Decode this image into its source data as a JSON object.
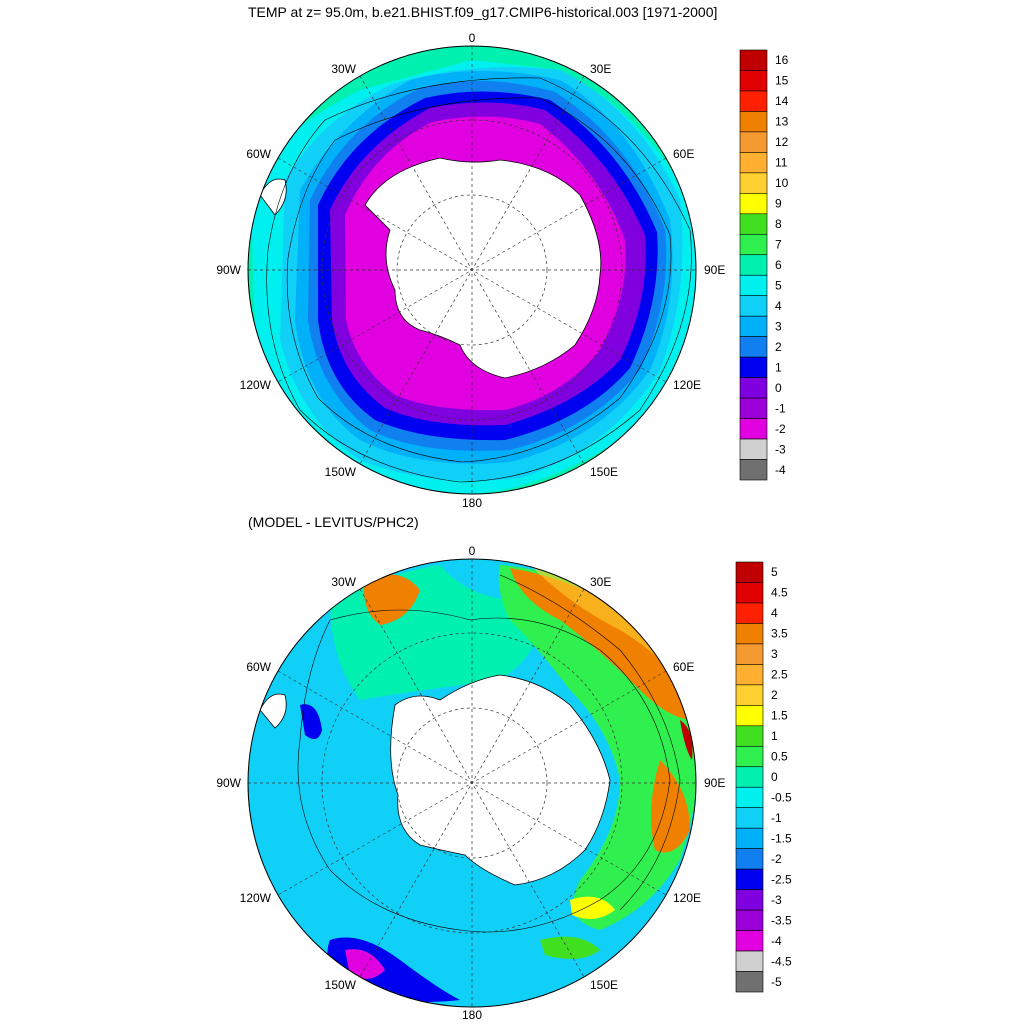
{
  "top_panel": {
    "title": "TEMP at z=  95.0m, b.e21.BHIST.f09_g17.CMIP6-historical.003 [1971-2000]",
    "lon_labels": {
      "n": "0",
      "nne": "30E",
      "ene": "60E",
      "e": "90E",
      "ese": "120E",
      "sse": "150E",
      "s": "180",
      "ssw": "150W",
      "wsw": "120W",
      "w": "90W",
      "wnw": "60W",
      "nnw": "30W"
    },
    "colorbar": {
      "labels": [
        "16",
        "15",
        "14",
        "13",
        "12",
        "11",
        "10",
        "9",
        "8",
        "7",
        "6",
        "5",
        "4",
        "3",
        "2",
        "1",
        "0",
        "-1",
        "-2",
        "-3",
        "-4"
      ],
      "colors": [
        "#c00000",
        "#e00000",
        "#ff2000",
        "#f08000",
        "#f59a30",
        "#ffb030",
        "#ffd030",
        "#ffff00",
        "#40e020",
        "#30f050",
        "#00f0b0",
        "#00f0f0",
        "#10d0f8",
        "#00b0f8",
        "#1080f0",
        "#0000f0",
        "#8000e0",
        "#9c00d8",
        "#e000e0",
        "#d0d0d0",
        "#707070"
      ]
    }
  },
  "bottom_panel": {
    "title": "(MODEL - LEVITUS/PHC2)",
    "lon_labels": {
      "n": "0",
      "nne": "30E",
      "ene": "60E",
      "e": "90E",
      "ese": "120E",
      "sse": "150E",
      "s": "180",
      "ssw": "150W",
      "wsw": "120W",
      "w": "90W",
      "wnw": "60W",
      "nnw": "30W"
    },
    "colorbar": {
      "labels": [
        "5",
        "4.5",
        "4",
        "3.5",
        "3",
        "2.5",
        "2",
        "1.5",
        "1",
        "0.5",
        "0",
        "-0.5",
        "-1",
        "-1.5",
        "-2",
        "-2.5",
        "-3",
        "-3.5",
        "-4",
        "-4.5",
        "-5"
      ],
      "colors": [
        "#c00000",
        "#e00000",
        "#ff2000",
        "#f08000",
        "#f59a30",
        "#ffb030",
        "#ffd030",
        "#ffff00",
        "#40e020",
        "#30f050",
        "#00f0b0",
        "#00f0f0",
        "#10d0f8",
        "#00b0f8",
        "#1080f0",
        "#0000f0",
        "#8000e0",
        "#9c00d8",
        "#e000e0",
        "#d0d0d0",
        "#707070"
      ]
    }
  }
}
